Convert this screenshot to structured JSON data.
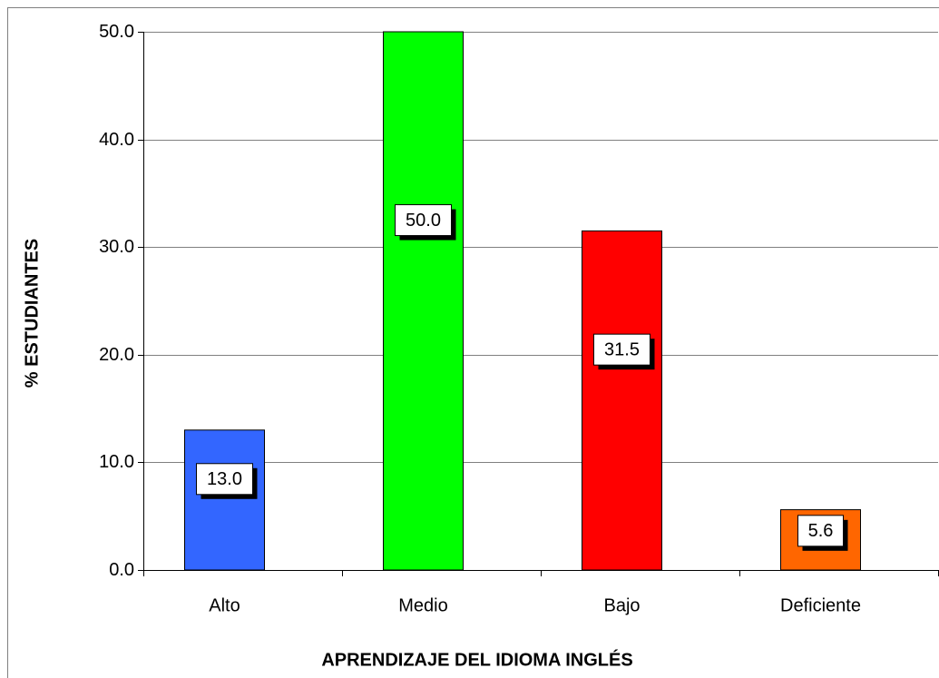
{
  "chart_data": {
    "type": "bar",
    "x_label": "APRENDIZAJE DEL IDIOMA INGLÉS",
    "y_label": "% ESTUDIANTES",
    "categories": [
      "Alto",
      "Medio",
      "Bajo",
      "Deficiente"
    ],
    "values": [
      13.0,
      50.0,
      31.5,
      5.6
    ],
    "value_labels": [
      "13.0",
      "50.0",
      "31.5",
      "5.6"
    ],
    "colors": [
      "#3366ff",
      "#00ff00",
      "#ff0000",
      "#ff6600"
    ],
    "ylim": [
      0,
      50
    ],
    "yticks": [
      {
        "value": 0,
        "label": "0.0"
      },
      {
        "value": 10,
        "label": "10.0"
      },
      {
        "value": 20,
        "label": "20.0"
      },
      {
        "value": 30,
        "label": "30.0"
      },
      {
        "value": 40,
        "label": "40.0"
      },
      {
        "value": 50,
        "label": "50.0"
      }
    ],
    "grid": true
  }
}
